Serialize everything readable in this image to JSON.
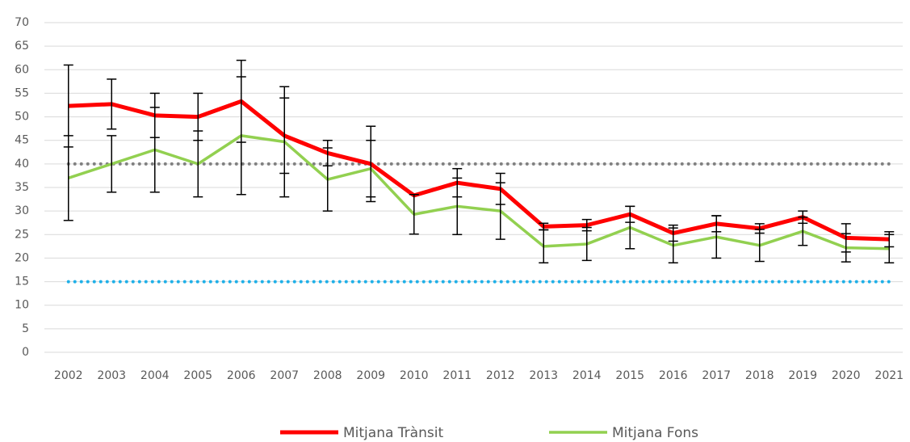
{
  "chart_data": {
    "type": "line",
    "categories": [
      "2002",
      "2003",
      "2004",
      "2005",
      "2006",
      "2007",
      "2008",
      "2009",
      "2010",
      "2011",
      "2012",
      "2013",
      "2014",
      "2015",
      "2016",
      "2017",
      "2018",
      "2019",
      "2020",
      "2021"
    ],
    "series": [
      {
        "name": "Mitjana Trànsit",
        "color": "#ff0000",
        "values": [
          52.3,
          52.7,
          50.3,
          50,
          53.3,
          46,
          42.3,
          40,
          33.3,
          36,
          34.7,
          26.7,
          27,
          29.3,
          25.3,
          27.3,
          26.3,
          28.7,
          24.3,
          24
        ],
        "errors": [
          8.7,
          5.3,
          4.7,
          5,
          8.7,
          8,
          2.7,
          8,
          0,
          3,
          3.3,
          0.7,
          1.2,
          1.7,
          1.7,
          1.7,
          1,
          1.3,
          3,
          1.6
        ]
      },
      {
        "name": "Mitjana Fons",
        "color": "#92d050",
        "values": [
          37,
          40,
          43,
          40,
          46,
          44.7,
          36.7,
          39,
          29.3,
          31,
          30,
          22.5,
          23,
          26.5,
          22.7,
          24.5,
          22.7,
          25.7,
          22.2,
          22
        ],
        "errors": [
          9,
          6,
          9,
          7,
          12.5,
          11.7,
          6.7,
          6,
          4.2,
          6,
          6,
          3.5,
          3.5,
          4.5,
          3.7,
          4.5,
          3.4,
          3,
          3,
          3
        ]
      }
    ],
    "reference_lines": [
      {
        "value": 40,
        "color": "#808080"
      },
      {
        "value": 15,
        "color": "#1fb0e8"
      }
    ],
    "ylim": [
      0,
      70
    ],
    "yticks": [
      0,
      5,
      10,
      15,
      20,
      25,
      30,
      35,
      40,
      45,
      50,
      55,
      60,
      65,
      70
    ],
    "grid": true,
    "legend": "bottom"
  }
}
